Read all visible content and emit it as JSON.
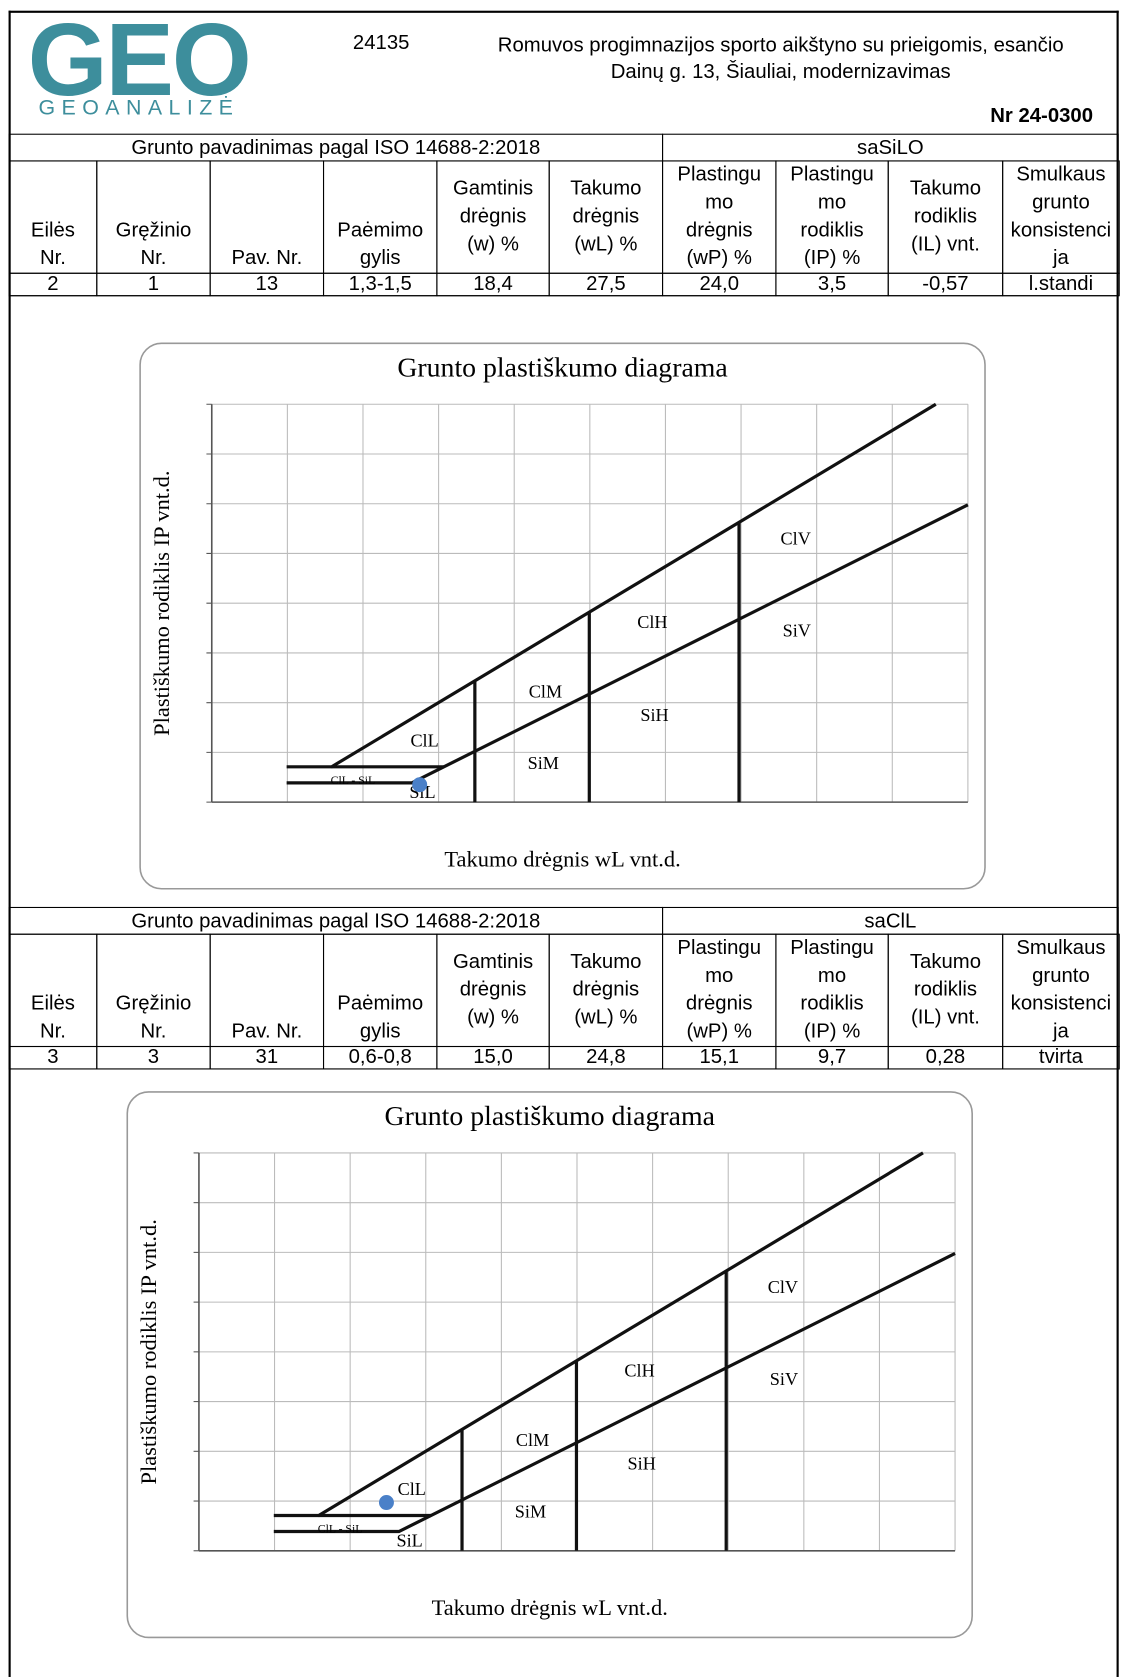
{
  "header": {
    "logo_mark": "GEO",
    "logo_name": "GEOANALIZĖ",
    "code": "24135",
    "title": "Romuvos progimnazijos sporto aikštyno su prieigomis, esančio\nDainų g. 13, Šiauliai, modernizavimas",
    "number": "Nr 24-0300"
  },
  "columns": [
    "Eilės\nNr.",
    "Gręžinio\nNr.",
    "Pav. Nr.",
    "Paėmimo\ngylis",
    "Gamtinis\ndrėgnis\n(w) %",
    "Takumo\ndrėgnis\n(wL) %",
    "Plastingu\nmo\ndrėgnis\n(wP) %",
    "Plastingu\nmo\nrodiklis\n(IP) %",
    "Takumo\nrodiklis\n(IL) vnt.",
    "Smulkaus\ngrunto\nkonsistenci\nja"
  ],
  "sections": [
    {
      "name_label": "Grunto pavadinimas pagal ISO 14688-2:2018",
      "name_value": "saSiLO",
      "row": [
        "2",
        "1",
        "13",
        "1,3-1,5",
        18.4,
        27.5,
        24.0,
        3.5,
        -0.57,
        "l.standi"
      ],
      "row_labels": [
        "2",
        "1",
        "13",
        "1,3-1,5",
        "18,4",
        "27,5",
        "24,0",
        "3,5",
        "-0,57",
        "l.standi"
      ]
    },
    {
      "name_label": "Grunto pavadinimas pagal ISO 14688-2:2018",
      "name_value": "saClL",
      "row": [
        "3",
        "3",
        "31",
        "0,6-0,8",
        15.0,
        24.8,
        15.1,
        9.7,
        0.28,
        "tvirta"
      ],
      "row_labels": [
        "3",
        "3",
        "31",
        "0,6-0,8",
        "15,0",
        "24,8",
        "15,1",
        "9,7",
        "0,28",
        "tvirta"
      ]
    }
  ],
  "diagram": {
    "title": "Grunto plastiškumo diagrama",
    "ylabel": "Plastiškumo rodiklis IP vnt.d.",
    "xlabel": "Takumo drėgnis wL vnt.d.",
    "zones": [
      "ClL",
      "ClM",
      "ClH",
      "ClV",
      "SiL",
      "SiM",
      "SiH",
      "SiV",
      "ClL - SiL"
    ]
  }
}
